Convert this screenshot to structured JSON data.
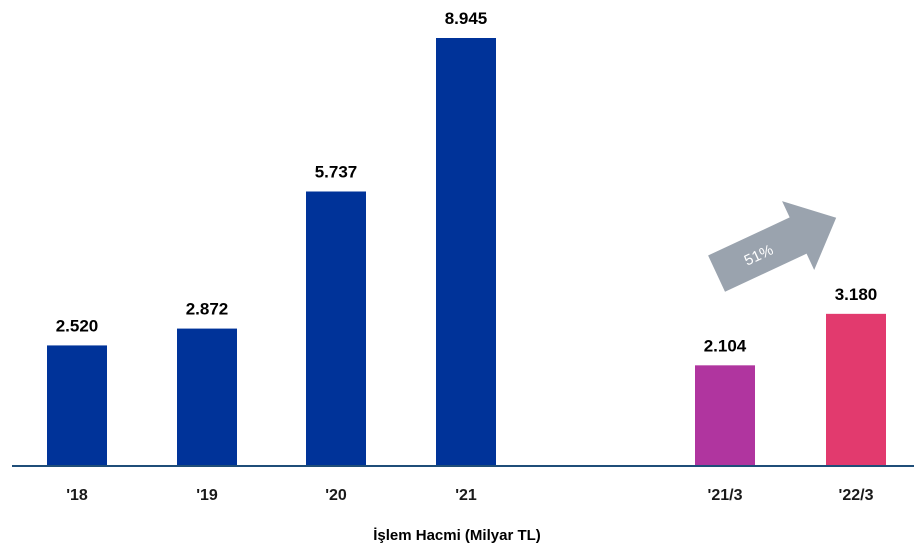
{
  "chart_data": {
    "type": "bar",
    "categories": [
      "'18",
      "'19",
      "'20",
      "'21",
      "'21/3",
      "'22/3"
    ],
    "values": [
      2520,
      2872,
      5737,
      8945,
      2104,
      3180
    ],
    "value_labels": [
      "2.520",
      "2.872",
      "5.737",
      "8.945",
      "2.104",
      "3.180"
    ],
    "bar_colors": [
      "#003399",
      "#003399",
      "#003399",
      "#003399",
      "#b0359f",
      "#e23a6e"
    ],
    "xlabel": "İşlem Hacmi (Milyar TL)",
    "ylabel": "",
    "ylim": [
      0,
      9600
    ],
    "grid": false,
    "legend": "none",
    "annotation": {
      "text": "51%",
      "from_category": "'21/3",
      "to_category": "'22/3",
      "color": "#9aa3ae"
    }
  },
  "colors": {
    "axis_line": "#1f4e79",
    "background": "#ffffff"
  }
}
